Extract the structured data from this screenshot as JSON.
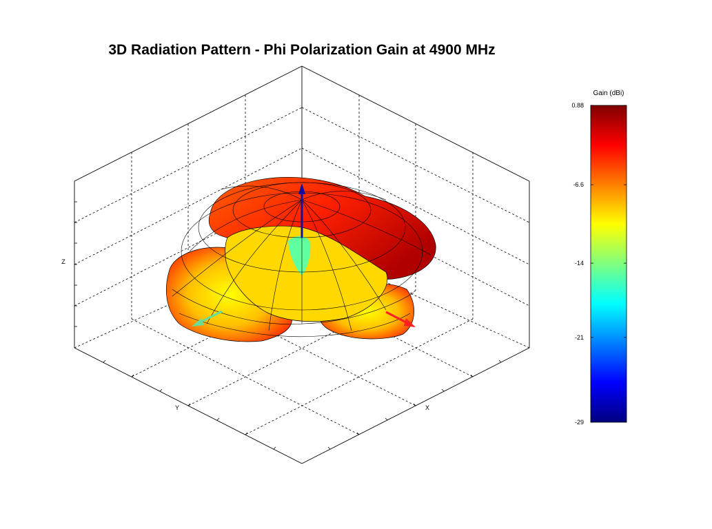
{
  "chart_data": {
    "type": "surface3d",
    "title": "3D Radiation Pattern - Phi Polarization Gain at 4900 MHz",
    "xlabel": "X",
    "ylabel": "Y",
    "zlabel": "Z",
    "colorbar": {
      "title": "Gain (dBi)",
      "ticks": [
        "0.88",
        "-6.6",
        "-14",
        "-21",
        "-29"
      ],
      "tick_values": [
        0.88,
        -6.6,
        -14,
        -21,
        -29
      ],
      "range": [
        -29,
        0.88
      ],
      "colormap": "jet"
    },
    "pattern": {
      "frequency_mhz": 4900,
      "polarization": "Phi",
      "max_gain_dbi": 0.88,
      "min_gain_dbi": -29,
      "lobes": 4,
      "shape": "four-lobed, null along z-axis"
    },
    "axis_arrows": [
      {
        "axis": "X",
        "color": "#ff2020"
      },
      {
        "axis": "Y",
        "color": "#66dd99"
      },
      {
        "axis": "Z",
        "color": "#1010a0"
      }
    ]
  }
}
